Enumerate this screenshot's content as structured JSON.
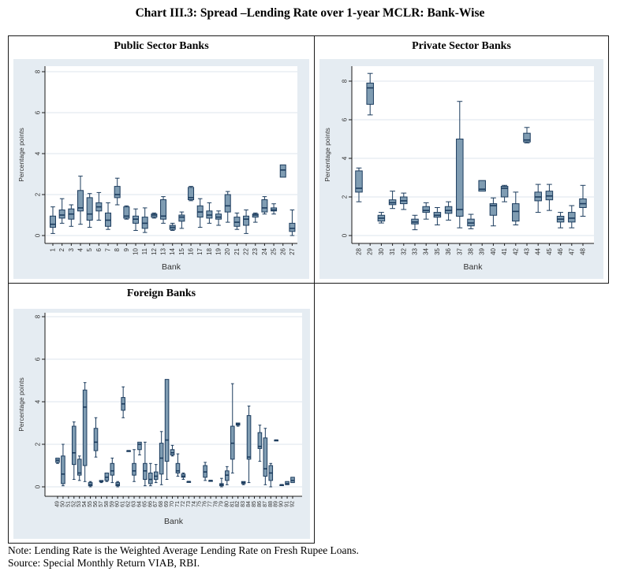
{
  "title": "Chart III.3: Spread –Lending Rate over 1-year MCLR: Bank-Wise",
  "note": "Note: Lending Rate is the Weighted Average Lending Rate on Fresh Rupee Loans.",
  "source": "Source: Special Monthly Return VIAB, RBI.",
  "colors": {
    "panel_bg": "#e5ecf2",
    "plot_bg": "#ffffff",
    "grid": "#dde4ec",
    "axis": "#1a1a1a",
    "text": "#333333",
    "box_fill": "#7f9cb2",
    "box_stroke": "#1c3c5e"
  },
  "chart_data": [
    {
      "type": "box",
      "title": "Public Sector Banks",
      "xlabel": "Bank",
      "ylabel": "Percentage points",
      "ylim": [
        0,
        8
      ],
      "yticks": [
        0,
        2,
        4,
        6,
        8
      ],
      "grid": true,
      "boxes_format": [
        "min",
        "q1",
        "median",
        "q3",
        "max"
      ],
      "categories": [
        "1",
        "2",
        "3",
        "4",
        "5",
        "6",
        "7",
        "8",
        "9",
        "10",
        "11",
        "12",
        "13",
        "14",
        "15",
        "16",
        "17",
        "18",
        "19",
        "20",
        "21",
        "22",
        "23",
        "24",
        "25",
        "26",
        "27"
      ],
      "boxes": [
        [
          0.1,
          0.4,
          0.55,
          0.95,
          1.4
        ],
        [
          0.6,
          0.85,
          1.0,
          1.25,
          1.8
        ],
        [
          0.45,
          0.8,
          1.05,
          1.3,
          1.5
        ],
        [
          0.55,
          1.2,
          1.35,
          2.2,
          2.9
        ],
        [
          0.4,
          0.75,
          1.05,
          1.85,
          2.05
        ],
        [
          0.75,
          1.2,
          1.4,
          1.6,
          2.1
        ],
        [
          0.3,
          0.45,
          0.75,
          1.1,
          1.6
        ],
        [
          1.5,
          1.85,
          2.0,
          2.4,
          2.8
        ],
        [
          0.8,
          0.85,
          0.95,
          1.4,
          1.45
        ],
        [
          0.25,
          0.6,
          0.8,
          0.95,
          1.3
        ],
        [
          0.15,
          0.35,
          0.6,
          0.9,
          1.35
        ],
        [
          0.85,
          0.9,
          1.0,
          1.05,
          1.1
        ],
        [
          0.6,
          0.8,
          0.95,
          1.75,
          1.9
        ],
        [
          0.25,
          0.3,
          0.4,
          0.5,
          0.6
        ],
        [
          0.35,
          0.7,
          0.9,
          1.0,
          1.15
        ],
        [
          1.7,
          1.75,
          1.85,
          2.35,
          2.4
        ],
        [
          0.4,
          0.9,
          1.15,
          1.45,
          1.8
        ],
        [
          0.6,
          0.85,
          1.0,
          1.2,
          1.6
        ],
        [
          0.5,
          0.8,
          0.9,
          1.05,
          1.2
        ],
        [
          0.65,
          1.15,
          1.45,
          2.0,
          2.15
        ],
        [
          0.3,
          0.45,
          0.65,
          0.9,
          1.1
        ],
        [
          0.1,
          0.5,
          0.8,
          0.95,
          1.25
        ],
        [
          0.65,
          0.9,
          1.0,
          1.05,
          1.1
        ],
        [
          1.05,
          1.15,
          1.35,
          1.75,
          1.9
        ],
        [
          1.05,
          1.2,
          1.25,
          1.35,
          1.55
        ],
        [
          2.85,
          2.85,
          3.2,
          3.45,
          3.45
        ],
        [
          0.0,
          0.2,
          0.35,
          0.6,
          1.25
        ]
      ]
    },
    {
      "type": "box",
      "title": "Private Sector Banks",
      "xlabel": "Bank",
      "ylabel": "Percentage points",
      "ylim": [
        0,
        8
      ],
      "yticks": [
        0,
        2,
        4,
        6,
        8
      ],
      "grid": true,
      "boxes_format": [
        "min",
        "q1",
        "median",
        "q3",
        "max"
      ],
      "categories": [
        "28",
        "29",
        "30",
        "31",
        "32",
        "33",
        "34",
        "35",
        "36",
        "37",
        "38",
        "39",
        "40",
        "41",
        "42",
        "43",
        "44",
        "45",
        "46",
        "47",
        "48"
      ],
      "boxes": [
        [
          1.75,
          2.25,
          2.45,
          3.35,
          3.5
        ],
        [
          6.25,
          6.8,
          7.65,
          7.9,
          8.4
        ],
        [
          0.65,
          0.75,
          0.9,
          1.05,
          1.2
        ],
        [
          1.4,
          1.6,
          1.7,
          1.85,
          2.3
        ],
        [
          1.35,
          1.65,
          1.8,
          2.0,
          2.2
        ],
        [
          0.3,
          0.6,
          0.7,
          0.85,
          1.05
        ],
        [
          0.85,
          1.2,
          1.3,
          1.5,
          1.7
        ],
        [
          0.55,
          0.95,
          1.05,
          1.2,
          1.45
        ],
        [
          0.8,
          1.15,
          1.3,
          1.5,
          1.75
        ],
        [
          0.4,
          1.0,
          1.35,
          5.0,
          6.95
        ],
        [
          0.35,
          0.5,
          0.65,
          0.85,
          1.1
        ],
        [
          2.3,
          2.3,
          2.4,
          2.85,
          2.85
        ],
        [
          0.5,
          1.05,
          1.55,
          1.65,
          1.95
        ],
        [
          1.75,
          2.0,
          2.45,
          2.55,
          2.6
        ],
        [
          0.55,
          0.75,
          1.25,
          1.65,
          2.25
        ],
        [
          4.8,
          4.85,
          4.95,
          5.3,
          5.6
        ],
        [
          1.2,
          1.8,
          2.0,
          2.25,
          2.65
        ],
        [
          1.3,
          1.85,
          2.05,
          2.3,
          2.65
        ],
        [
          0.4,
          0.7,
          0.85,
          1.0,
          1.2
        ],
        [
          0.4,
          0.7,
          0.9,
          1.2,
          1.55
        ],
        [
          1.0,
          1.45,
          1.65,
          1.9,
          2.6
        ]
      ]
    },
    {
      "type": "box",
      "title": "Foreign Banks",
      "xlabel": "Bank",
      "ylabel": "Percentage points",
      "ylim": [
        0,
        8
      ],
      "yticks": [
        0,
        2,
        4,
        6,
        8
      ],
      "grid": true,
      "boxes_format": [
        "min",
        "q1",
        "median",
        "q3",
        "max"
      ],
      "categories": [
        "49",
        "50",
        "51",
        "52",
        "53",
        "54",
        "55",
        "56",
        "57",
        "58",
        "59",
        "60",
        "61",
        "62",
        "63",
        "64",
        "65",
        "66",
        "67",
        "68",
        "69",
        "70",
        "71",
        "72",
        "73",
        "74",
        "75",
        "76",
        "77",
        "78",
        "79",
        "80",
        "81",
        "82",
        "83",
        "84",
        "85",
        "86",
        "87",
        "88",
        "89",
        "90",
        "91",
        "92"
      ],
      "boxes": [
        [
          1.1,
          1.15,
          1.25,
          1.35,
          1.35
        ],
        [
          0.05,
          0.15,
          0.6,
          1.45,
          2.0
        ],
        null,
        [
          0.35,
          1.05,
          1.6,
          2.85,
          3.05
        ],
        [
          0.3,
          0.55,
          0.65,
          1.3,
          1.45
        ],
        [
          0.25,
          1.0,
          3.75,
          4.55,
          4.9
        ],
        [
          0.0,
          0.05,
          0.1,
          0.2,
          0.25
        ],
        [
          1.4,
          1.7,
          2.1,
          2.75,
          3.25
        ],
        [
          0.2,
          0.25,
          0.25,
          0.3,
          0.3
        ],
        [
          0.25,
          0.3,
          0.45,
          0.65,
          0.65
        ],
        [
          0.2,
          0.55,
          0.75,
          1.1,
          1.35
        ],
        [
          0.0,
          0.05,
          0.1,
          0.2,
          0.25
        ],
        [
          3.25,
          3.6,
          3.9,
          4.2,
          4.7
        ],
        [
          1.7,
          1.7,
          1.7,
          1.7,
          1.7
        ],
        [
          0.25,
          0.55,
          0.75,
          1.1,
          1.75
        ],
        [
          1.5,
          1.75,
          2.0,
          2.1,
          2.1
        ],
        [
          0.05,
          0.35,
          0.75,
          1.1,
          2.1
        ],
        [
          0.05,
          0.15,
          0.35,
          0.65,
          1.1
        ],
        [
          0.2,
          0.35,
          0.5,
          0.7,
          1.05
        ],
        [
          0.1,
          0.6,
          1.35,
          2.05,
          2.6
        ],
        [
          0.35,
          1.2,
          2.2,
          5.05,
          5.05
        ],
        [
          1.45,
          1.5,
          1.6,
          1.75,
          1.95
        ],
        [
          0.5,
          0.65,
          0.75,
          1.1,
          1.55
        ],
        [
          0.35,
          0.45,
          0.5,
          0.6,
          0.65
        ],
        [
          0.25,
          0.25,
          0.25,
          0.25,
          0.25
        ],
        null,
        null,
        [
          0.3,
          0.45,
          0.7,
          1.0,
          1.15
        ],
        [
          0.3,
          0.3,
          0.3,
          0.3,
          0.3
        ],
        null,
        [
          0.0,
          0.05,
          0.1,
          0.15,
          0.4
        ],
        [
          0.1,
          0.3,
          0.55,
          0.75,
          0.95
        ],
        [
          0.65,
          1.3,
          2.05,
          2.85,
          4.85
        ],
        [
          2.85,
          2.9,
          2.95,
          3.0,
          3.0
        ],
        [
          0.1,
          0.15,
          0.2,
          0.25,
          0.25
        ],
        [
          0.2,
          1.3,
          1.4,
          3.35,
          3.8
        ],
        null,
        [
          1.2,
          1.8,
          1.9,
          2.55,
          2.9
        ],
        [
          0.1,
          0.5,
          0.85,
          2.3,
          2.75
        ],
        [
          0.0,
          0.3,
          0.65,
          1.0,
          1.1
        ],
        [
          2.2,
          2.2,
          2.2,
          2.2,
          2.2
        ],
        [
          0.1,
          0.1,
          0.1,
          0.1,
          0.1
        ],
        [
          0.1,
          0.1,
          0.15,
          0.25,
          0.25
        ],
        [
          0.2,
          0.2,
          0.3,
          0.45,
          0.45
        ]
      ]
    }
  ]
}
